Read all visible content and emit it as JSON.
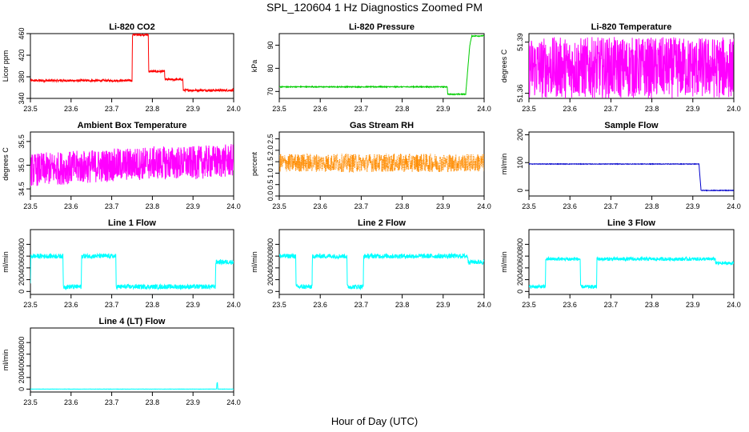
{
  "figure": {
    "title": "SPL_120604  1 Hz Diagnostics Zoomed PM",
    "xlabel": "Hour of Day (UTC)"
  },
  "chart_data": [
    {
      "type": "line",
      "title": "Li-820 CO2",
      "ylabel": "Licor ppm",
      "color": "#ff0000",
      "xlim": [
        23.5,
        24.0
      ],
      "ylim": [
        340,
        460
      ],
      "xticks": [
        23.5,
        23.6,
        23.7,
        23.8,
        23.9,
        24.0
      ],
      "yticks": [
        340,
        380,
        420,
        460
      ],
      "x": [
        23.5,
        23.75,
        23.751,
        23.79,
        23.791,
        23.83,
        23.831,
        23.875,
        23.876,
        23.9,
        23.96,
        24.0
      ],
      "y": [
        373,
        373,
        458,
        458,
        390,
        390,
        375,
        375,
        355,
        355,
        355,
        355
      ],
      "noise": 2
    },
    {
      "type": "line",
      "title": "Li-820 Pressure",
      "ylabel": "kPa",
      "color": "#00cc00",
      "xlim": [
        23.5,
        24.0
      ],
      "ylim": [
        67,
        95
      ],
      "xticks": [
        23.5,
        23.6,
        23.7,
        23.8,
        23.9,
        24.0
      ],
      "yticks": [
        70,
        80,
        90
      ],
      "x": [
        23.5,
        23.91,
        23.911,
        23.955,
        23.965,
        23.97,
        24.0
      ],
      "y": [
        72,
        72,
        68.8,
        68.8,
        90,
        94,
        94
      ],
      "noise": 0.2
    },
    {
      "type": "line",
      "title": "Li-820 Temperature",
      "ylabel": "degrees C",
      "color": "#ff00ff",
      "xlim": [
        23.5,
        24.0
      ],
      "ylim": [
        51.357,
        51.395
      ],
      "xticks": [
        23.5,
        23.6,
        23.7,
        23.8,
        23.9,
        24.0
      ],
      "yticks": [
        51.36,
        51.39
      ],
      "x": [
        23.5,
        24.0
      ],
      "y": [
        51.375,
        51.375
      ],
      "noise": 0.018
    },
    {
      "type": "line",
      "title": "Ambient Box Temperature",
      "ylabel": "degrees C",
      "color": "#ff00ff",
      "xlim": [
        23.5,
        24.0
      ],
      "ylim": [
        34.35,
        35.7
      ],
      "xticks": [
        23.5,
        23.6,
        23.7,
        23.8,
        23.9,
        24.0
      ],
      "yticks": [
        34.5,
        35.0,
        35.5
      ],
      "x": [
        23.5,
        23.6,
        23.7,
        23.8,
        23.9,
        24.0
      ],
      "y": [
        34.9,
        34.95,
        35.0,
        35.05,
        35.05,
        35.1
      ],
      "noise": 0.35
    },
    {
      "type": "scatter",
      "title": "Gas Stream RH",
      "ylabel": "percent",
      "color": "#ff8c00",
      "xlim": [
        23.5,
        24.0
      ],
      "ylim": [
        0,
        2.8
      ],
      "xticks": [
        23.5,
        23.6,
        23.7,
        23.8,
        23.9,
        24.0
      ],
      "yticks": [
        0.0,
        0.5,
        1.0,
        1.5,
        2.0,
        2.5
      ],
      "x": [
        23.5,
        24.0
      ],
      "y": [
        1.45,
        1.45
      ],
      "noise": 0.4
    },
    {
      "type": "line",
      "title": "Sample Flow",
      "ylabel": "ml/min",
      "color": "#0000cc",
      "xlim": [
        23.5,
        24.0
      ],
      "ylim": [
        -20,
        210
      ],
      "xticks": [
        23.5,
        23.6,
        23.7,
        23.8,
        23.9,
        24.0
      ],
      "yticks": [
        0,
        100,
        200
      ],
      "x": [
        23.5,
        23.915,
        23.92,
        24.0
      ],
      "y": [
        95,
        95,
        0,
        0
      ],
      "noise": 1
    },
    {
      "type": "line",
      "title": "Line 1 Flow",
      "ylabel": "ml/min",
      "color": "#00ffff",
      "xlim": [
        23.5,
        24.0
      ],
      "ylim": [
        -50,
        1050
      ],
      "xticks": [
        23.5,
        23.6,
        23.7,
        23.8,
        23.9,
        24.0
      ],
      "yticks": [
        0,
        200,
        400,
        600,
        800
      ],
      "x": [
        23.5,
        23.501,
        23.58,
        23.581,
        23.625,
        23.626,
        23.71,
        23.711,
        23.955,
        23.956,
        24.0
      ],
      "y": [
        100,
        600,
        600,
        80,
        80,
        600,
        600,
        80,
        80,
        500,
        500
      ],
      "noise": 40
    },
    {
      "type": "line",
      "title": "Line 2 Flow",
      "ylabel": "ml/min",
      "color": "#00ffff",
      "xlim": [
        23.5,
        24.0
      ],
      "ylim": [
        -50,
        1050
      ],
      "xticks": [
        23.5,
        23.6,
        23.7,
        23.8,
        23.9,
        24.0
      ],
      "yticks": [
        0,
        200,
        400,
        600,
        800
      ],
      "x": [
        23.5,
        23.54,
        23.541,
        23.58,
        23.581,
        23.665,
        23.666,
        23.705,
        23.706,
        23.96,
        23.961,
        24.0
      ],
      "y": [
        600,
        600,
        80,
        80,
        600,
        600,
        80,
        80,
        600,
        600,
        500,
        500
      ],
      "noise": 40
    },
    {
      "type": "line",
      "title": "Line 3 Flow",
      "ylabel": "ml/min",
      "color": "#00ffff",
      "xlim": [
        23.5,
        24.0
      ],
      "ylim": [
        -50,
        1050
      ],
      "xticks": [
        23.5,
        23.6,
        23.7,
        23.8,
        23.9,
        24.0
      ],
      "yticks": [
        0,
        200,
        400,
        600,
        800
      ],
      "x": [
        23.5,
        23.501,
        23.54,
        23.541,
        23.625,
        23.626,
        23.665,
        23.666,
        23.955,
        23.956,
        24.0
      ],
      "y": [
        80,
        80,
        80,
        550,
        550,
        80,
        80,
        550,
        550,
        480,
        480
      ],
      "noise": 30
    },
    {
      "type": "line",
      "title": "Line 4 (LT) Flow",
      "ylabel": "ml/min",
      "color": "#00ffff",
      "xlim": [
        23.5,
        24.0
      ],
      "ylim": [
        -50,
        1050
      ],
      "xticks": [
        23.5,
        23.6,
        23.7,
        23.8,
        23.9,
        24.0
      ],
      "yticks": [
        0,
        200,
        400,
        600,
        800
      ],
      "x": [
        23.5,
        23.958,
        23.959,
        23.96,
        23.961,
        24.0
      ],
      "y": [
        0,
        0,
        110,
        110,
        0,
        0
      ],
      "noise": 2
    }
  ]
}
